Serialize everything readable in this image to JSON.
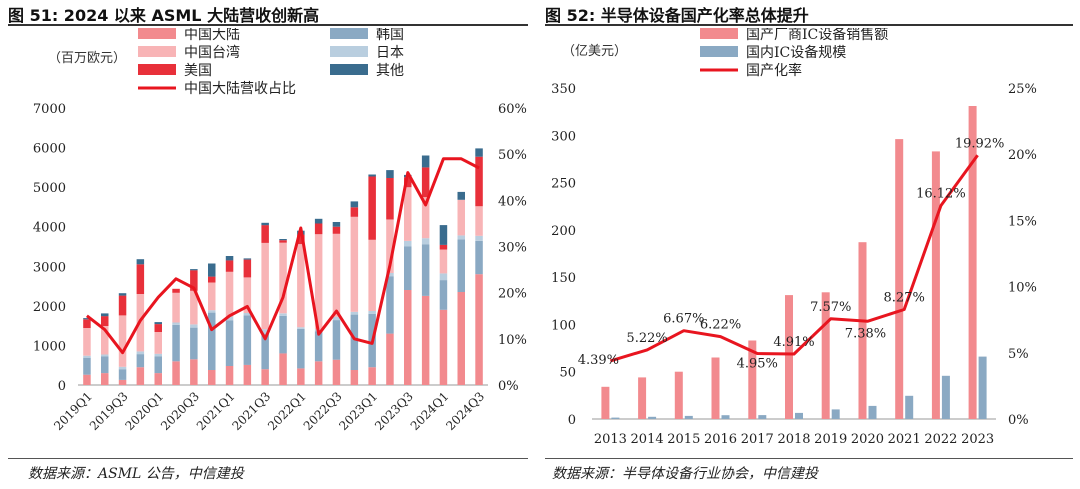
{
  "left": {
    "title": "图 51: 2024 以来 ASML 大陆营收创新高",
    "source": "数据来源：ASML 公告，中信建投",
    "unit_label": "（百万欧元）",
    "colors": {
      "china": "#f28a8e",
      "taiwan": "#f8b4b6",
      "us": "#e8303a",
      "korea": "#8aa9c3",
      "japan": "#b9cedf",
      "others": "#3a6c8e",
      "share": "#e8151f"
    }
  },
  "right": {
    "title": "图 52: 半导体设备国产化率总体提升",
    "source": "数据来源：半导体设备行业协会，中信建投",
    "unit_label": "（亿美元）",
    "colors": {
      "sales": "#f28a8e",
      "market": "#8aa9c3",
      "rate": "#e8151f"
    }
  },
  "chart_data": [
    {
      "type": "bar",
      "stacked": true,
      "title": "2024 以来 ASML 大陆营收创新高",
      "ylabel": "（百万欧元）",
      "ylim": [
        0,
        7000
      ],
      "yticks": [
        "0",
        "1000",
        "2000",
        "3000",
        "4000",
        "5000",
        "6000",
        "7000"
      ],
      "y2lim": [
        0,
        60
      ],
      "y2ticks": [
        "0%",
        "10%",
        "20%",
        "30%",
        "40%",
        "50%",
        "60%"
      ],
      "categories": [
        "2019Q1",
        "2019Q2",
        "2019Q3",
        "2019Q4",
        "2020Q1",
        "2020Q2",
        "2020Q3",
        "2020Q4",
        "2021Q1",
        "2021Q2",
        "2021Q3",
        "2021Q4",
        "2022Q1",
        "2022Q2",
        "2022Q3",
        "2022Q4",
        "2023Q1",
        "2023Q2",
        "2023Q3",
        "2023Q4",
        "2024Q1",
        "2024Q2",
        "2024Q3"
      ],
      "tick_labels": [
        "2019Q1",
        "2019Q3",
        "2020Q1",
        "2020Q3",
        "2021Q1",
        "2021Q3",
        "2022Q1",
        "2022Q3",
        "2023Q1",
        "2023Q3",
        "2024Q1",
        "2024Q3"
      ],
      "series": [
        {
          "name": "中国大陆",
          "color_key": "china",
          "values": [
            260,
            300,
            130,
            450,
            300,
            600,
            650,
            380,
            480,
            510,
            400,
            800,
            420,
            600,
            640,
            380,
            450,
            1300,
            2400,
            2250,
            1900,
            2350,
            2800
          ]
        },
        {
          "name": "韩国",
          "color_key": "korea",
          "values": [
            430,
            420,
            270,
            330,
            420,
            920,
            800,
            1450,
            1150,
            1250,
            900,
            950,
            1000,
            760,
            1000,
            1400,
            1350,
            1450,
            1100,
            1300,
            750,
            1330,
            840
          ]
        },
        {
          "name": "日本",
          "color_key": "japan",
          "values": [
            50,
            50,
            60,
            70,
            70,
            60,
            80,
            60,
            100,
            60,
            110,
            60,
            40,
            50,
            80,
            70,
            70,
            80,
            140,
            160,
            170,
            100,
            130
          ]
        },
        {
          "name": "中国台湾",
          "color_key": "taiwan",
          "values": [
            700,
            720,
            1300,
            1450,
            550,
            750,
            850,
            700,
            1130,
            900,
            2180,
            1790,
            2100,
            2400,
            2100,
            2400,
            1800,
            1350,
            1360,
            1040,
            600,
            900,
            750
          ]
        },
        {
          "name": "美国",
          "color_key": "us",
          "values": [
            220,
            250,
            500,
            750,
            200,
            100,
            520,
            150,
            290,
            450,
            450,
            60,
            240,
            270,
            180,
            240,
            1600,
            1050,
            250,
            750,
            120,
            0,
            1250
          ]
        },
        {
          "name": "其他",
          "color_key": "others",
          "values": [
            30,
            70,
            60,
            130,
            50,
            0,
            30,
            330,
            110,
            30,
            60,
            30,
            100,
            120,
            120,
            150,
            50,
            200,
            60,
            300,
            500,
            200,
            210
          ]
        }
      ],
      "share_series": {
        "name": "中国大陆营收占比",
        "color_key": "share",
        "values": [
          15,
          12,
          7,
          14,
          19,
          23,
          21,
          12,
          15,
          17,
          10,
          19,
          34,
          11,
          16,
          10,
          9,
          26,
          46,
          39,
          49,
          49,
          47
        ]
      },
      "legend": [
        "中国大陆",
        "中国台湾",
        "美国",
        "中国大陆营收占比",
        "韩国",
        "日本",
        "其他"
      ]
    },
    {
      "type": "bar",
      "title": "半导体设备国产化率总体提升",
      "ylabel": "（亿美元）",
      "ylim": [
        0,
        350
      ],
      "yticks": [
        "0",
        "50",
        "100",
        "150",
        "200",
        "250",
        "300",
        "350"
      ],
      "y2lim": [
        0,
        25
      ],
      "y2ticks": [
        "0%",
        "5%",
        "10%",
        "15%",
        "20%",
        "25%"
      ],
      "categories": [
        "2013",
        "2014",
        "2015",
        "2016",
        "2017",
        "2018",
        "2019",
        "2020",
        "2021",
        "2022",
        "2023"
      ],
      "series": [
        {
          "name": "国产厂商IC设备销售额",
          "color_key": "sales",
          "values": [
            34,
            44,
            50,
            65,
            83,
            131,
            134,
            187,
            296,
            283,
            331
          ]
        },
        {
          "name": "国内IC设备规模",
          "color_key": "market",
          "values": [
            1.5,
            2.3,
            3.3,
            4,
            4.1,
            6.4,
            10.1,
            13.8,
            24.5,
            45.7,
            66
          ]
        }
      ],
      "rate_series": {
        "name": "国产化率",
        "color_key": "rate",
        "values": [
          4.39,
          5.22,
          6.67,
          6.22,
          4.95,
          4.91,
          7.57,
          7.38,
          8.27,
          16.12,
          19.92
        ]
      },
      "rate_labels": [
        "4.39%",
        "5.22%",
        "6.67%",
        "6.22%",
        "4.95%",
        "4.91%",
        "7.57%",
        "7.38%",
        "8.27%",
        "16.12%",
        "19.92%"
      ],
      "legend": [
        "国产厂商IC设备销售额",
        "国内IC设备规模",
        "国产化率"
      ]
    }
  ]
}
